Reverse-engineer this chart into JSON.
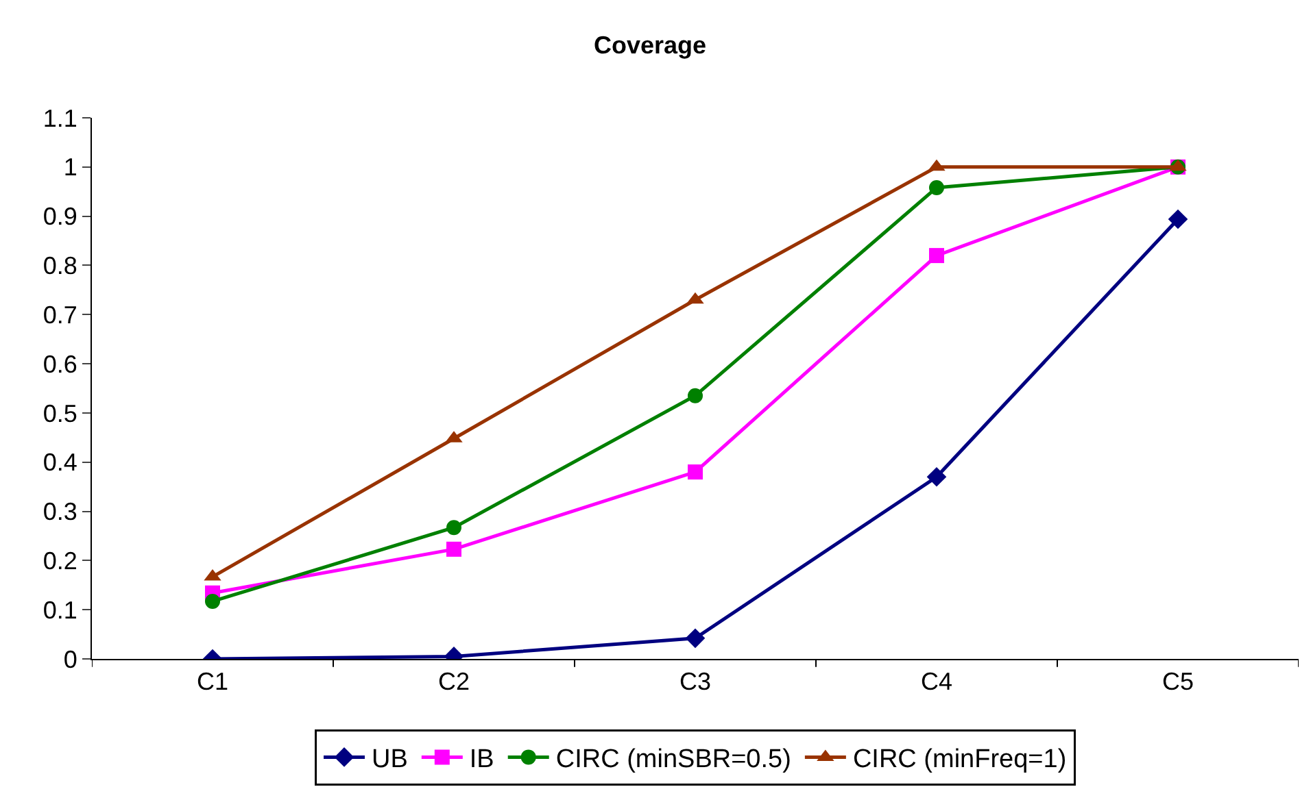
{
  "chart_data": {
    "type": "line",
    "title": "Coverage",
    "categories": [
      "C1",
      "C2",
      "C3",
      "C4",
      "C5"
    ],
    "series": [
      {
        "name": "UB",
        "color": "#000080",
        "marker": "diamond",
        "values": [
          0,
          0.005,
          0.042,
          0.37,
          0.894
        ]
      },
      {
        "name": "IB",
        "color": "#ff00ff",
        "marker": "square",
        "values": [
          0.134,
          0.223,
          0.38,
          0.82,
          1
        ]
      },
      {
        "name": "CIRC (minSBR=0.5)",
        "color": "#008000",
        "marker": "circle",
        "values": [
          0.117,
          0.267,
          0.535,
          0.958,
          1
        ]
      },
      {
        "name": "CIRC (minFreq=1)",
        "color": "#993300",
        "marker": "triangle",
        "values": [
          0.167,
          0.448,
          0.73,
          1,
          1
        ]
      }
    ],
    "ylim": [
      0,
      1.1
    ],
    "yticks": [
      0,
      0.1,
      0.2,
      0.3,
      0.4,
      0.5,
      0.6,
      0.7,
      0.8,
      0.9,
      1,
      1.1
    ],
    "grid": false,
    "legend": "bottom"
  }
}
